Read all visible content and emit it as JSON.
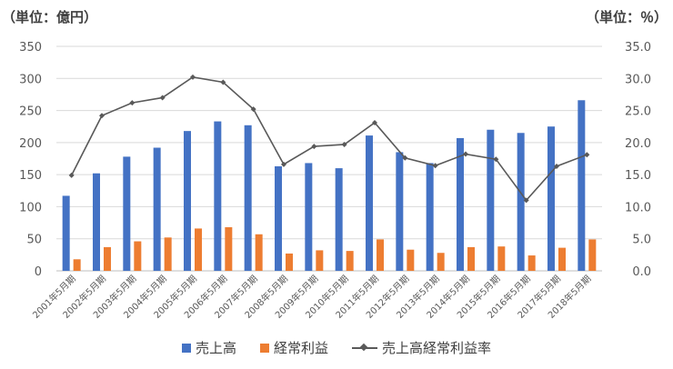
{
  "units": {
    "left": "（単位：億円）",
    "right": "（単位：％）"
  },
  "chart_data": {
    "type": "bar",
    "categories": [
      "2001年5月期",
      "2002年5月期",
      "2003年5月期",
      "2004年5月期",
      "2005年5月期",
      "2006年5月期",
      "2007年5月期",
      "2008年5月期",
      "2009年5月期",
      "2010年5月期",
      "2011年5月期",
      "2012年5月期",
      "2013年5月期",
      "2014年5月期",
      "2015年5月期",
      "2016年5月期",
      "2017年5月期",
      "2018年5月期"
    ],
    "series": [
      {
        "name": "売上高",
        "kind": "bar",
        "axis": "left",
        "color": "#4472C4",
        "values": [
          117,
          152,
          178,
          192,
          218,
          233,
          227,
          163,
          168,
          160,
          211,
          185,
          168,
          207,
          220,
          215,
          225,
          266
        ]
      },
      {
        "name": "経常利益",
        "kind": "bar",
        "axis": "left",
        "color": "#ED7D31",
        "values": [
          18,
          37,
          46,
          52,
          66,
          68,
          57,
          27,
          32,
          31,
          49,
          33,
          28,
          37,
          38,
          24,
          36,
          49
        ]
      },
      {
        "name": "売上高経常利益率",
        "kind": "line",
        "axis": "right",
        "color": "#595959",
        "values": [
          14.9,
          24.2,
          26.2,
          27.0,
          30.2,
          29.4,
          25.2,
          16.6,
          19.4,
          19.7,
          23.1,
          17.6,
          16.4,
          18.2,
          17.4,
          11.0,
          16.3,
          18.1
        ]
      }
    ],
    "ylim_left": [
      0,
      350
    ],
    "yticks_left": [
      "0",
      "50",
      "100",
      "150",
      "200",
      "250",
      "300",
      "350"
    ],
    "ylim_right": [
      0,
      35
    ],
    "yticks_right": [
      "0.0",
      "5.0",
      "10.0",
      "15.0",
      "20.0",
      "25.0",
      "30.0",
      "35.0"
    ],
    "grid": true,
    "legend_position": "bottom"
  }
}
